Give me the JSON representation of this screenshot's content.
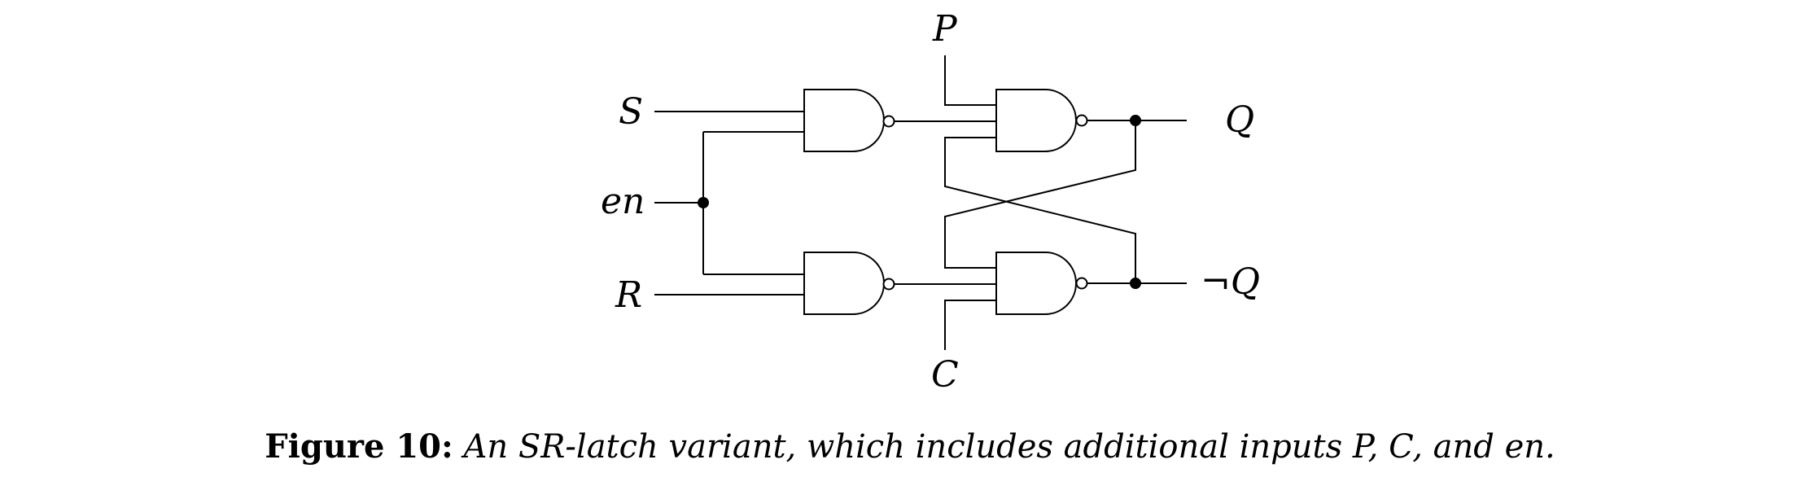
{
  "diagram": {
    "inputs": {
      "s": "S",
      "en": "en",
      "r": "R",
      "p": "P",
      "c": "C"
    },
    "outputs": {
      "q": "Q",
      "not_q": "¬Q"
    }
  },
  "caption": {
    "label": "Figure 10:",
    "text": "An SR-latch variant, which includes additional inputs P, C, and en."
  }
}
